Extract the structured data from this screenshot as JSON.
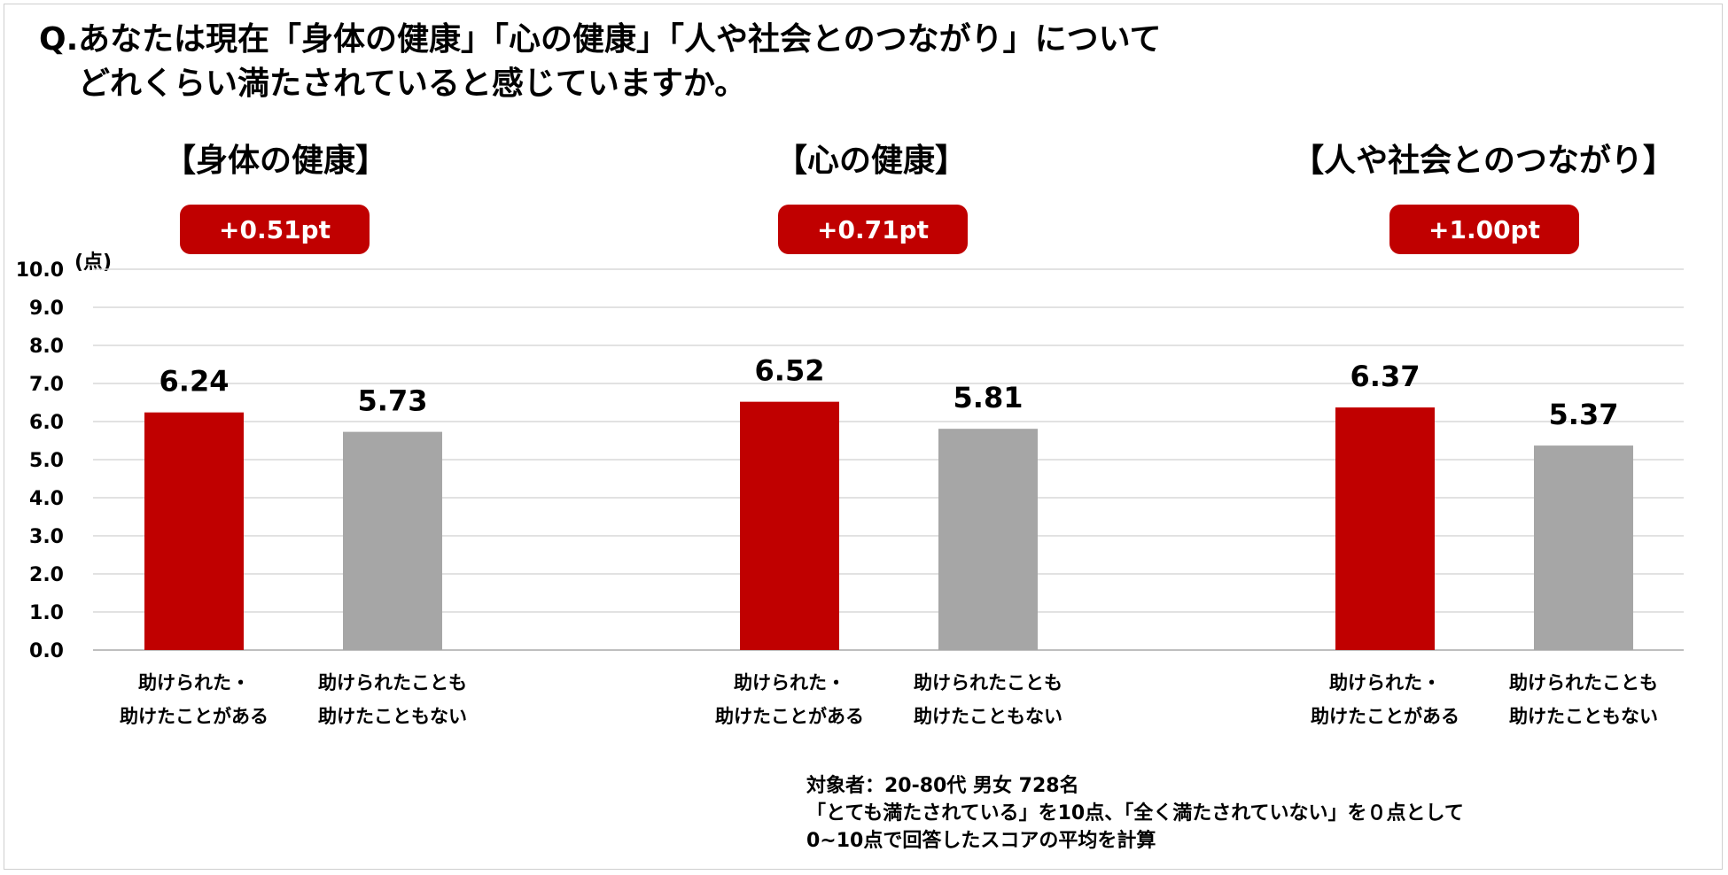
{
  "question": {
    "prefix": "Q.",
    "line1": "あなたは現在「身体の健康」「心の健康」「人や社会とのつながり」について",
    "line2": "どれくらい満たされていると感じていますか。"
  },
  "unit": "(点)",
  "colors": {
    "red": "#c00000",
    "gray": "#a6a6a6",
    "grid": "#d9d9d9",
    "axis": "#bfbfbf"
  },
  "groups": [
    {
      "title": "【身体の健康】",
      "diff": "+0.51pt",
      "categories": [
        {
          "line1": "助けられた・",
          "line2": "助けたことがある"
        },
        {
          "line1": "助けられたことも",
          "line2": "助けたこともない"
        }
      ]
    },
    {
      "title": "【心の健康】",
      "diff": "+0.71pt",
      "categories": [
        {
          "line1": "助けられた・",
          "line2": "助けたことがある"
        },
        {
          "line1": "助けられたことも",
          "line2": "助けたこともない"
        }
      ]
    },
    {
      "title": "【人や社会とのつながり】",
      "diff": "+1.00pt",
      "categories": [
        {
          "line1": "助けられた・",
          "line2": "助けたことがある"
        },
        {
          "line1": "助けられたことも",
          "line2": "助けたこともない"
        }
      ]
    }
  ],
  "chart_data": {
    "type": "bar",
    "title": "あなたは現在「身体の健康」「心の健康」「人や社会とのつながり」についてどれくらい満たされていると感じていますか。",
    "ylabel": "(点)",
    "xlabel": "",
    "ylim": [
      0,
      10
    ],
    "yticks": [
      "0.0",
      "1.0",
      "2.0",
      "3.0",
      "4.0",
      "5.0",
      "6.0",
      "7.0",
      "8.0",
      "9.0",
      "10.0"
    ],
    "grid": true,
    "categories": [
      "身体の健康",
      "心の健康",
      "人や社会とのつながり"
    ],
    "series": [
      {
        "name": "助けられた・助けたことがある",
        "color": "#c00000",
        "values": [
          6.24,
          6.52,
          6.37
        ],
        "labels": [
          "6.24",
          "6.52",
          "6.37"
        ]
      },
      {
        "name": "助けられたことも助けたこともない",
        "color": "#a6a6a6",
        "values": [
          5.73,
          5.81,
          5.37
        ],
        "labels": [
          "5.73",
          "5.81",
          "5.37"
        ]
      }
    ]
  },
  "footnote": {
    "line1": "対象者：20-80代 男女 728名",
    "line2": "「とても満たされている」を10点、「全く満たされていない」を０点として",
    "line3": "0~10点で回答したスコアの平均を計算"
  }
}
